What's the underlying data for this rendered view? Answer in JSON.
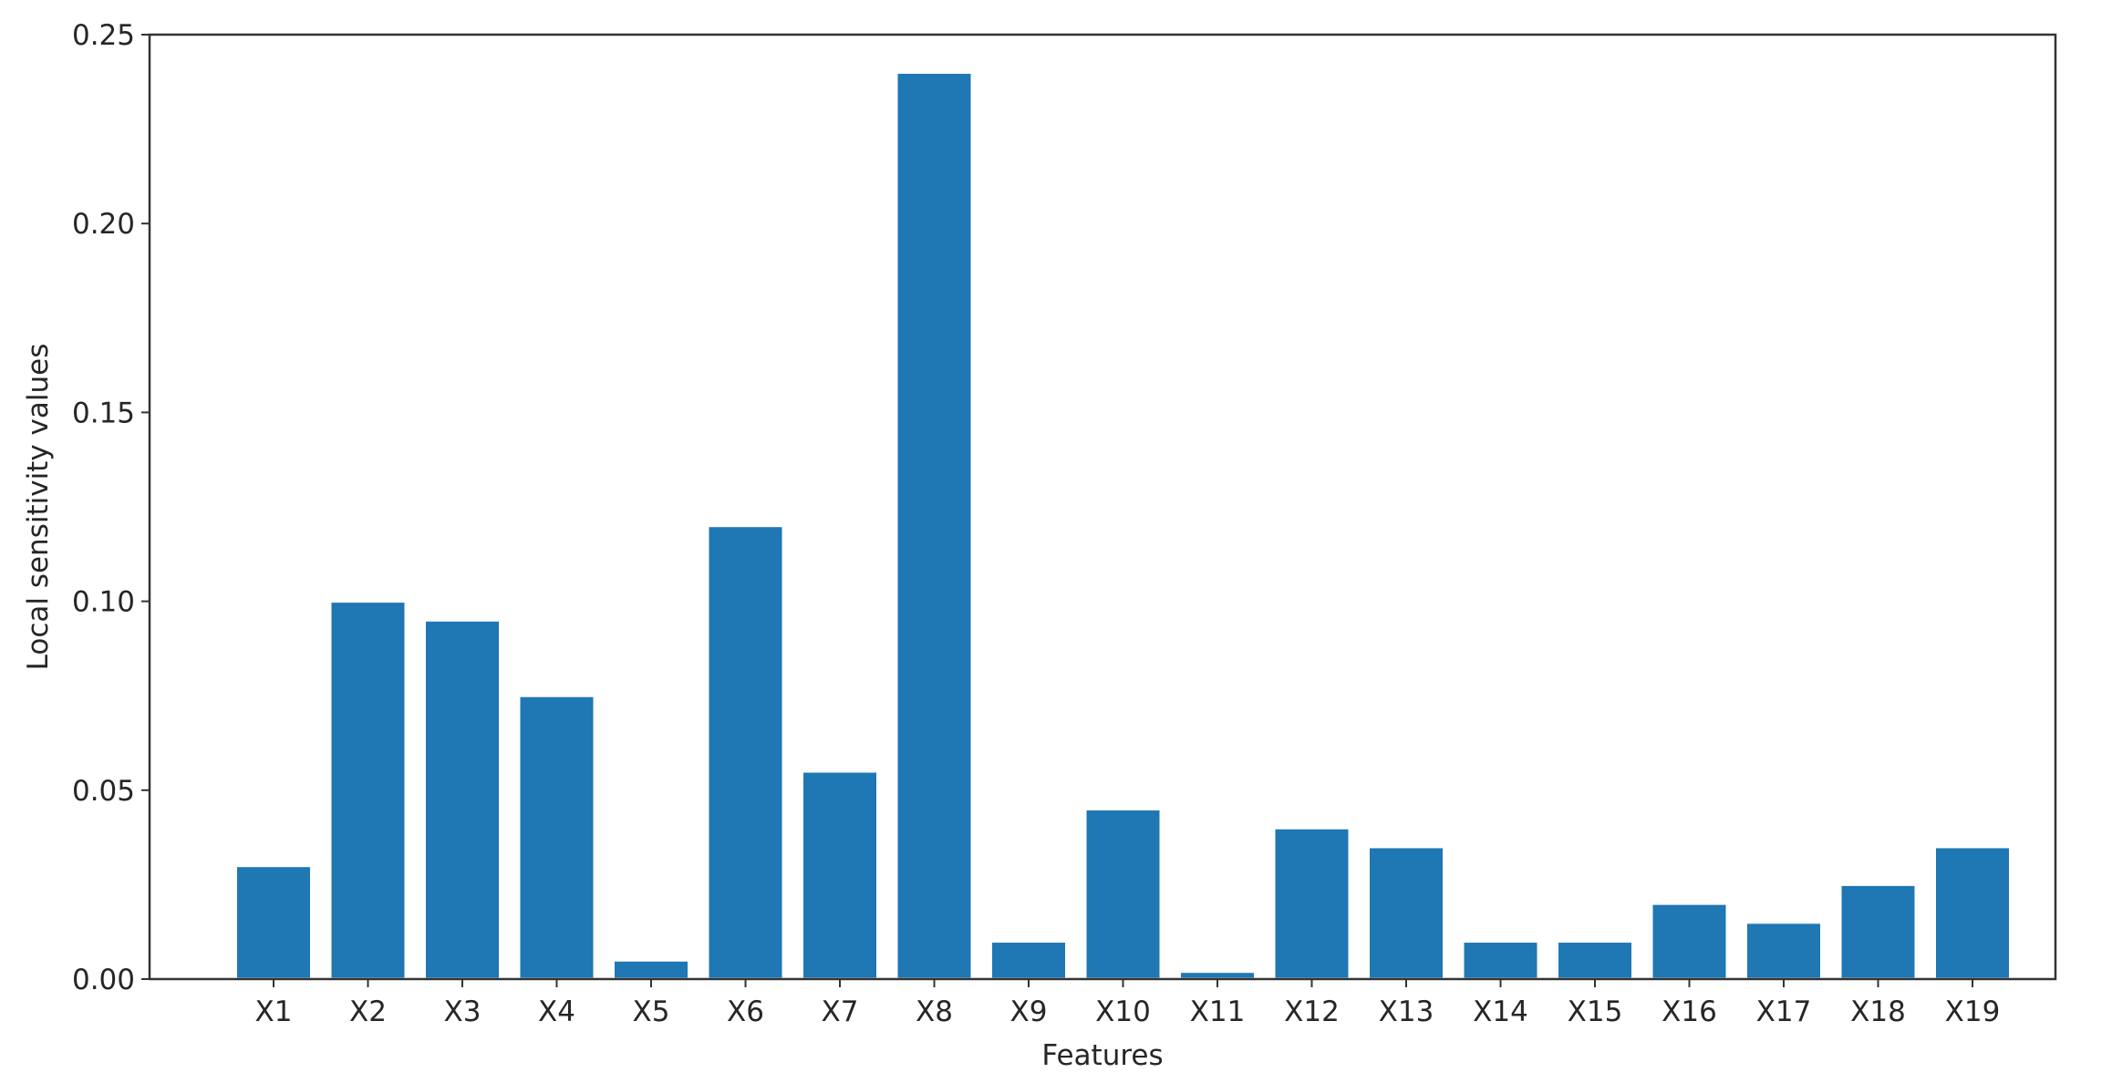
{
  "chart_data": {
    "type": "bar",
    "categories": [
      "X1",
      "X2",
      "X3",
      "X4",
      "X5",
      "X6",
      "X7",
      "X8",
      "X9",
      "X10",
      "X11",
      "X12",
      "X13",
      "X14",
      "X15",
      "X16",
      "X17",
      "X18",
      "X19"
    ],
    "values": [
      0.03,
      0.1,
      0.095,
      0.075,
      0.005,
      0.12,
      0.055,
      0.24,
      0.01,
      0.045,
      0.002,
      0.04,
      0.035,
      0.01,
      0.01,
      0.02,
      0.015,
      0.025,
      0.035
    ],
    "title": "",
    "xlabel": "Features",
    "ylabel": "Local sensitivity values",
    "ylim": [
      0,
      0.25
    ],
    "yticks": [
      "0.00",
      "0.05",
      "0.10",
      "0.15",
      "0.20",
      "0.25"
    ],
    "grid": false,
    "bar_color": "#1f77b4"
  }
}
